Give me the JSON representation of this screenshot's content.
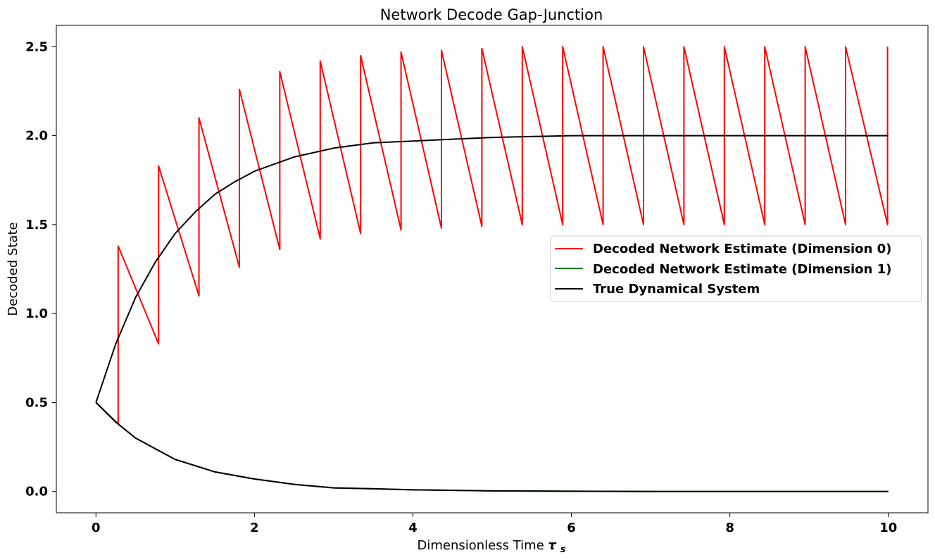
{
  "chart_data": {
    "type": "line",
    "title": "Network Decode Gap-Junction",
    "xlabel": "Dimensionless Time",
    "xlabel_symbol": "τ",
    "xlabel_subscript": "s",
    "ylabel": "Decoded State",
    "xlim": [
      -0.5,
      10.5
    ],
    "ylim": [
      -0.12,
      2.62
    ],
    "xticks": [
      0,
      2,
      4,
      6,
      8,
      10
    ],
    "xtick_labels": [
      "0",
      "2",
      "4",
      "6",
      "8",
      "10"
    ],
    "yticks": [
      0.0,
      0.5,
      1.0,
      1.5,
      2.0,
      2.5
    ],
    "ytick_labels": [
      "0.0",
      "0.5",
      "1.0",
      "1.5",
      "2.0",
      "2.5"
    ],
    "grid": false,
    "legend_position": "center-right",
    "series": [
      {
        "name": "Decoded Network Estimate (Dimension 0)",
        "color": "#ff0000",
        "x": [
          0,
          0.28,
          0.28,
          0.79,
          0.79,
          1.3,
          1.3,
          1.81,
          1.81,
          2.32,
          2.32,
          2.83,
          2.83,
          3.34,
          3.34,
          3.85,
          3.85,
          4.36,
          4.36,
          4.87,
          4.87,
          5.38,
          5.38,
          5.89,
          5.89,
          6.4,
          6.4,
          6.91,
          6.91,
          7.42,
          7.42,
          7.93,
          7.93,
          8.44,
          8.44,
          8.95,
          8.95,
          9.46,
          9.46,
          9.99,
          9.99
        ],
        "y": [
          0.5,
          0.38,
          1.38,
          0.83,
          1.83,
          1.1,
          2.1,
          1.26,
          2.26,
          1.36,
          2.36,
          1.42,
          2.42,
          1.45,
          2.45,
          1.47,
          2.47,
          1.48,
          2.48,
          1.49,
          2.49,
          1.5,
          2.5,
          1.5,
          2.5,
          1.5,
          2.5,
          1.5,
          2.5,
          1.5,
          2.5,
          1.5,
          2.5,
          1.5,
          2.5,
          1.5,
          2.5,
          1.5,
          2.5,
          1.5,
          2.5
        ]
      },
      {
        "name": "Decoded Network Estimate (Dimension 1)",
        "color": "#008000",
        "x": [
          0,
          0.25,
          0.5,
          0.75,
          1.0,
          1.5,
          2.0,
          2.5,
          3.0,
          3.5,
          4.0,
          5.0,
          6.0,
          7.0,
          8.0,
          9.0,
          10.0
        ],
        "y": [
          0.5,
          0.39,
          0.3,
          0.24,
          0.18,
          0.11,
          0.07,
          0.04,
          0.02,
          0.015,
          0.009,
          0.003,
          0.001,
          0.0,
          0.0,
          0.0,
          0.0
        ]
      },
      {
        "name": "True Dynamical System",
        "color": "#000000",
        "x": [
          0,
          0.25,
          0.5,
          0.75,
          1.0,
          1.25,
          1.5,
          1.75,
          2.0,
          2.5,
          3.0,
          3.5,
          4.0,
          4.5,
          5.0,
          6.0,
          7.0,
          8.0,
          9.0,
          10.0
        ],
        "y": [
          0.5,
          0.83,
          1.09,
          1.29,
          1.45,
          1.57,
          1.67,
          1.74,
          1.8,
          1.88,
          1.93,
          1.96,
          1.97,
          1.98,
          1.99,
          2.0,
          2.0,
          2.0,
          2.0,
          2.0
        ],
        "x2": [
          0,
          0.25,
          0.5,
          0.75,
          1.0,
          1.5,
          2.0,
          2.5,
          3.0,
          3.5,
          4.0,
          5.0,
          6.0,
          7.0,
          8.0,
          9.0,
          10.0
        ],
        "y2": [
          0.5,
          0.39,
          0.3,
          0.24,
          0.18,
          0.11,
          0.07,
          0.04,
          0.02,
          0.015,
          0.009,
          0.003,
          0.001,
          0.0,
          0.0,
          0.0,
          0.0
        ]
      }
    ]
  }
}
